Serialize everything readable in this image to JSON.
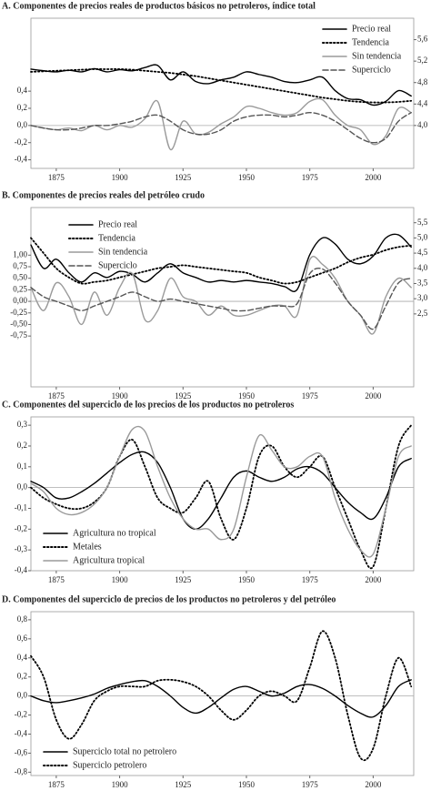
{
  "chart_data": [
    {
      "type": "line",
      "title": "A. Componentes de precios reales de productos básicos no petroleros, índice total",
      "x": [
        1865,
        1870,
        1875,
        1880,
        1885,
        1890,
        1895,
        1900,
        1905,
        1910,
        1915,
        1920,
        1925,
        1930,
        1935,
        1940,
        1945,
        1950,
        1955,
        1960,
        1965,
        1970,
        1975,
        1980,
        1985,
        1990,
        1995,
        2000,
        2005,
        2010,
        2015
      ],
      "xlim": [
        1865,
        2016
      ],
      "xticks": [
        1875,
        1900,
        1925,
        1950,
        1975,
        2000
      ],
      "ylim": [
        -0.5,
        1.25
      ],
      "yticks": [
        {
          "value": -0.4,
          "label": "-0,4"
        },
        {
          "value": -0.2,
          "label": "-0,2"
        },
        {
          "value": 0,
          "label": "0,0"
        },
        {
          "value": 0.2,
          "label": "0,2"
        },
        {
          "value": 0.4,
          "label": "0,4"
        }
      ],
      "y2lim": [
        3.2,
        6.0
      ],
      "y2ticks": [
        {
          "value": 4.0,
          "label": "4,0"
        },
        {
          "value": 4.4,
          "label": "4,4"
        },
        {
          "value": 4.8,
          "label": "4,8"
        },
        {
          "value": 5.2,
          "label": "5,2"
        },
        {
          "value": 5.6,
          "label": "5,6"
        }
      ],
      "legend": "upper right",
      "series": [
        {
          "name": "Precio real",
          "color": "#000000",
          "dash": "solid",
          "axis": "y2",
          "values": [
            5.05,
            5.02,
            5.0,
            5.03,
            5.0,
            5.06,
            5.0,
            5.04,
            5.02,
            5.08,
            5.12,
            4.85,
            5.0,
            4.82,
            4.78,
            4.85,
            4.9,
            5.0,
            4.95,
            4.9,
            4.82,
            4.8,
            4.85,
            4.9,
            4.65,
            4.5,
            4.48,
            4.38,
            4.45,
            4.65,
            4.55
          ]
        },
        {
          "name": "Tendencia",
          "color": "#000000",
          "dash": "dotted",
          "axis": "y2",
          "values": [
            5.0,
            5.01,
            5.02,
            5.03,
            5.04,
            5.05,
            5.05,
            5.05,
            5.04,
            5.02,
            5.0,
            4.98,
            4.95,
            4.92,
            4.88,
            4.84,
            4.8,
            4.76,
            4.72,
            4.68,
            4.64,
            4.6,
            4.56,
            4.52,
            4.49,
            4.46,
            4.44,
            4.43,
            4.43,
            4.44,
            4.46
          ]
        },
        {
          "name": "Sin tendencia",
          "color": "#9a9a9a",
          "dash": "solid",
          "values": [
            0.0,
            -0.03,
            -0.05,
            -0.03,
            -0.06,
            0.0,
            -0.05,
            0.0,
            -0.02,
            0.08,
            0.28,
            -0.28,
            0.05,
            -0.1,
            -0.08,
            0.02,
            0.1,
            0.22,
            0.2,
            0.15,
            0.12,
            0.15,
            0.28,
            0.3,
            0.12,
            0.0,
            -0.05,
            -0.22,
            -0.12,
            0.2,
            0.15
          ]
        },
        {
          "name": "Superciclo",
          "color": "#555555",
          "dash": "dashed",
          "values": [
            0.0,
            -0.03,
            -0.05,
            -0.05,
            -0.03,
            0.0,
            0.0,
            0.02,
            0.05,
            0.1,
            0.12,
            0.05,
            -0.05,
            -0.1,
            -0.1,
            -0.05,
            0.05,
            0.1,
            0.12,
            0.12,
            0.1,
            0.12,
            0.15,
            0.12,
            0.05,
            -0.05,
            -0.15,
            -0.2,
            -0.15,
            0.05,
            0.15
          ]
        }
      ]
    },
    {
      "type": "line",
      "title": "B. Componentes de precios reales del petróleo crudo",
      "x": [
        1865,
        1870,
        1875,
        1880,
        1885,
        1890,
        1895,
        1900,
        1905,
        1910,
        1915,
        1920,
        1925,
        1930,
        1935,
        1940,
        1945,
        1950,
        1955,
        1960,
        1965,
        1970,
        1975,
        1980,
        1985,
        1990,
        1995,
        2000,
        2005,
        2010,
        2015
      ],
      "xlim": [
        1865,
        2016
      ],
      "xticks": [
        1875,
        1900,
        1925,
        1950,
        1975,
        2000
      ],
      "ylim": [
        -1.85,
        2.03
      ],
      "yticks": [
        {
          "value": -0.75,
          "label": "-0,75"
        },
        {
          "value": -0.5,
          "label": "-0,50"
        },
        {
          "value": -0.25,
          "label": "-0,25"
        },
        {
          "value": 0,
          "label": "0,00"
        },
        {
          "value": 0.25,
          "label": "0,25"
        },
        {
          "value": 0.5,
          "label": "0,50"
        },
        {
          "value": 0.75,
          "label": "0,75"
        },
        {
          "value": 1,
          "label": "1,00"
        }
      ],
      "y2lim": [
        0.1,
        6.0
      ],
      "y2ticks": [
        {
          "value": 2.5,
          "label": "2,5"
        },
        {
          "value": 3.0,
          "label": "3,0"
        },
        {
          "value": 3.5,
          "label": "3,5"
        },
        {
          "value": 4.0,
          "label": "4,0"
        },
        {
          "value": 4.5,
          "label": "4,5"
        },
        {
          "value": 5.0,
          "label": "5,0"
        },
        {
          "value": 5.5,
          "label": "5,5"
        }
      ],
      "legend": "upper left",
      "series": [
        {
          "name": "Precio  real",
          "color": "#000000",
          "dash": "solid",
          "axis": "y2",
          "values": [
            4.77,
            4.0,
            4.3,
            3.85,
            3.55,
            3.85,
            3.7,
            3.9,
            3.8,
            3.55,
            3.85,
            4.15,
            3.85,
            3.7,
            3.55,
            3.6,
            3.55,
            3.6,
            3.55,
            3.5,
            3.4,
            3.3,
            4.45,
            5.0,
            4.8,
            4.3,
            4.15,
            4.4,
            5.0,
            5.1,
            4.7
          ]
        },
        {
          "name": "Tendencia",
          "color": "#000000",
          "dash": "dotted",
          "axis": "y2",
          "values": [
            5.0,
            4.5,
            4.0,
            3.7,
            3.5,
            3.55,
            3.6,
            3.7,
            3.8,
            3.9,
            4.0,
            4.05,
            4.1,
            4.05,
            4.0,
            3.95,
            3.9,
            3.85,
            3.7,
            3.6,
            3.5,
            3.55,
            3.7,
            3.85,
            4.0,
            4.2,
            4.35,
            4.45,
            4.6,
            4.7,
            4.75
          ]
        },
        {
          "name": "Sin tendencia",
          "color": "#9a9a9a",
          "dash": "solid",
          "values": [
            0.3,
            -0.2,
            0.4,
            0.1,
            -0.5,
            0.2,
            -0.3,
            0.3,
            0.6,
            -0.4,
            -0.2,
            0.5,
            0.1,
            0.0,
            -0.3,
            -0.1,
            -0.3,
            -0.3,
            -0.2,
            -0.1,
            -0.1,
            -0.3,
            0.9,
            0.8,
            0.5,
            0.0,
            -0.3,
            -0.7,
            0.1,
            0.5,
            0.3
          ]
        },
        {
          "name": "Superciclo",
          "color": "#555555",
          "dash": "dashed",
          "values": [
            0.3,
            0.1,
            0.0,
            -0.1,
            -0.2,
            -0.1,
            0.0,
            0.1,
            0.2,
            0.1,
            0.0,
            0.05,
            0.0,
            -0.05,
            -0.1,
            -0.15,
            -0.2,
            -0.2,
            -0.15,
            -0.1,
            -0.1,
            -0.05,
            0.6,
            0.7,
            0.4,
            0.0,
            -0.3,
            -0.6,
            -0.1,
            0.4,
            0.5
          ]
        }
      ]
    },
    {
      "type": "line",
      "title": "C. Componentes del superciclo de los precios de los productos no petroleros",
      "x": [
        1865,
        1870,
        1875,
        1880,
        1885,
        1890,
        1895,
        1900,
        1905,
        1910,
        1915,
        1920,
        1925,
        1930,
        1935,
        1940,
        1945,
        1950,
        1955,
        1960,
        1965,
        1970,
        1975,
        1980,
        1985,
        1990,
        1995,
        2000,
        2005,
        2010,
        2015
      ],
      "xlim": [
        1865,
        2016
      ],
      "xticks": [
        1875,
        1900,
        1925,
        1950,
        1975,
        2000
      ],
      "ylim": [
        -0.4,
        0.34
      ],
      "yticks": [
        {
          "value": -0.4,
          "label": "-0,4"
        },
        {
          "value": -0.3,
          "label": "-0,3"
        },
        {
          "value": -0.2,
          "label": "-0,2"
        },
        {
          "value": -0.1,
          "label": "-0,1"
        },
        {
          "value": 0,
          "label": "0,0"
        },
        {
          "value": 0.1,
          "label": "0,1"
        },
        {
          "value": 0.2,
          "label": "0,2"
        },
        {
          "value": 0.3,
          "label": "0,3"
        }
      ],
      "legend": "lower left",
      "series": [
        {
          "name": "Agricultura no tropical",
          "color": "#000000",
          "dash": "solid",
          "values": [
            0.03,
            0.0,
            -0.05,
            -0.05,
            -0.02,
            0.02,
            0.07,
            0.12,
            0.16,
            0.17,
            0.12,
            0.0,
            -0.15,
            -0.2,
            -0.15,
            -0.05,
            0.05,
            0.08,
            0.05,
            0.03,
            0.05,
            0.09,
            0.1,
            0.07,
            0.0,
            -0.07,
            -0.12,
            -0.15,
            -0.05,
            0.1,
            0.14
          ]
        },
        {
          "name": "Metales",
          "color": "#000000",
          "dash": "dotted",
          "values": [
            0.0,
            -0.05,
            -0.08,
            -0.1,
            -0.1,
            -0.07,
            0.0,
            0.15,
            0.23,
            0.1,
            -0.05,
            -0.1,
            -0.12,
            -0.05,
            0.03,
            -0.15,
            -0.25,
            -0.1,
            0.15,
            0.2,
            0.1,
            0.05,
            0.1,
            0.15,
            0.0,
            -0.15,
            -0.3,
            -0.38,
            -0.1,
            0.2,
            0.3
          ]
        },
        {
          "name": "Agricultura tropical",
          "color": "#9a9a9a",
          "dash": "solid",
          "values": [
            0.02,
            -0.02,
            -0.1,
            -0.13,
            -0.12,
            -0.08,
            0.0,
            0.15,
            0.28,
            0.27,
            0.1,
            -0.05,
            -0.15,
            -0.2,
            -0.2,
            -0.25,
            -0.2,
            0.05,
            0.25,
            0.18,
            0.1,
            0.1,
            0.15,
            0.15,
            -0.05,
            -0.2,
            -0.3,
            -0.32,
            -0.1,
            0.15,
            0.2
          ]
        }
      ]
    },
    {
      "type": "line",
      "title": "D. Componentes del superciclo de precios de los productos no petroleros y del petróleo",
      "x": [
        1865,
        1870,
        1875,
        1880,
        1885,
        1890,
        1895,
        1900,
        1905,
        1910,
        1915,
        1920,
        1925,
        1930,
        1935,
        1940,
        1945,
        1950,
        1955,
        1960,
        1965,
        1970,
        1975,
        1980,
        1985,
        1990,
        1995,
        2000,
        2005,
        2010,
        2015
      ],
      "xlim": [
        1865,
        2016
      ],
      "xticks": [
        1875,
        1900,
        1925,
        1950,
        1975,
        2000
      ],
      "ylim": [
        -0.835,
        0.885
      ],
      "yticks": [
        {
          "value": -0.8,
          "label": "-0,8"
        },
        {
          "value": -0.6,
          "label": "-0,6"
        },
        {
          "value": -0.4,
          "label": "-0,4"
        },
        {
          "value": -0.2,
          "label": "-0,2"
        },
        {
          "value": 0,
          "label": "0,0"
        },
        {
          "value": 0.2,
          "label": "0,2"
        },
        {
          "value": 0.4,
          "label": "0,4"
        },
        {
          "value": 0.6,
          "label": "0,6"
        },
        {
          "value": 0.8,
          "label": "0,8"
        }
      ],
      "legend": "lower left",
      "series": [
        {
          "name": "Superciclo total no petrolero",
          "color": "#000000",
          "dash": "solid",
          "values": [
            0.0,
            -0.05,
            -0.07,
            -0.05,
            -0.02,
            0.02,
            0.08,
            0.12,
            0.15,
            0.16,
            0.1,
            0.0,
            -0.12,
            -0.18,
            -0.12,
            -0.02,
            0.07,
            0.1,
            0.05,
            0.0,
            0.03,
            0.1,
            0.12,
            0.08,
            0.0,
            -0.1,
            -0.18,
            -0.22,
            -0.1,
            0.1,
            0.17
          ]
        },
        {
          "name": "Superciclo petrolero",
          "color": "#000000",
          "dash": "dotted",
          "values": [
            0.42,
            0.2,
            -0.25,
            -0.45,
            -0.3,
            -0.05,
            0.05,
            0.1,
            0.1,
            0.1,
            0.16,
            0.17,
            0.15,
            0.1,
            0.0,
            -0.15,
            -0.25,
            -0.15,
            0.0,
            0.05,
            0.0,
            -0.05,
            0.3,
            0.68,
            0.4,
            -0.2,
            -0.65,
            -0.55,
            0.0,
            0.4,
            0.1
          ]
        }
      ]
    }
  ]
}
